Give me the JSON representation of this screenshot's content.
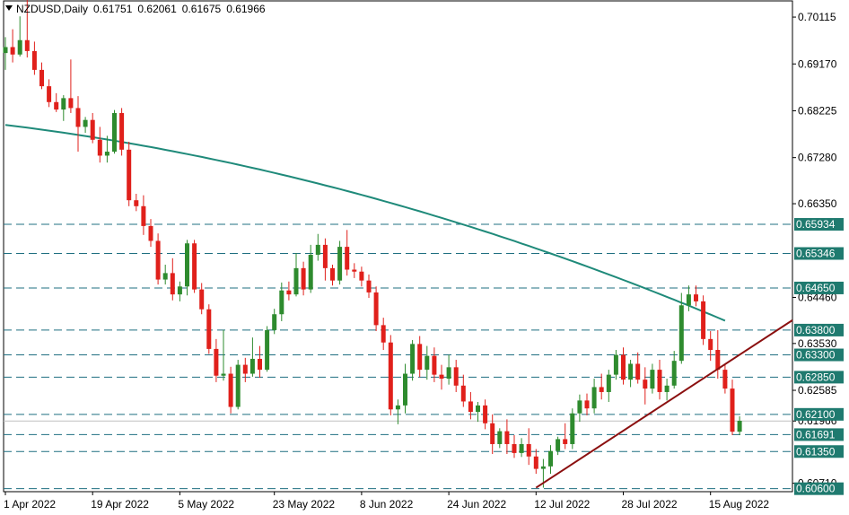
{
  "header": {
    "symbol": "NZDUSD,Daily",
    "open": "0.61751",
    "high": "0.62061",
    "low": "0.61675",
    "close": "0.61966"
  },
  "colors": {
    "bull": "#2e8b2e",
    "bear": "#e0201b",
    "ma": "#1f8a7a",
    "trendline": "#8b1010",
    "level_line": "#1f6f80",
    "label_bg": "#1f7a6f",
    "price_line": "#c0c0c0"
  },
  "chart_data": {
    "type": "candlestick",
    "symbol": "NZDUSD",
    "timeframe": "Daily",
    "ylim": [
      0.6054,
      0.7046
    ],
    "y_ticks": [
      "0.70115",
      "0.69170",
      "0.68225",
      "0.67280",
      "0.66350",
      "0.64460",
      "0.63530",
      "0.62585",
      "0.61966",
      "0.60710"
    ],
    "x_ticks": [
      "1 Apr 2022",
      "19 Apr 2022",
      "5 May 2022",
      "23 May 2022",
      "8 Jun 2022",
      "24 Jun 2022",
      "12 Jul 2022",
      "28 Jul 2022",
      "15 Aug 2022"
    ],
    "x_tick_index": [
      0,
      12,
      24,
      37,
      49,
      61,
      73,
      85,
      97
    ],
    "levels": [
      "0.65934",
      "0.65346",
      "0.64650",
      "0.63800",
      "0.63300",
      "0.62850",
      "0.62100",
      "0.61691",
      "0.61350",
      "0.60600"
    ],
    "current_price": "0.61966",
    "candles": [
      [
        0.6939,
        0.6971,
        0.6905,
        0.6951
      ],
      [
        0.6951,
        0.6987,
        0.692,
        0.6936
      ],
      [
        0.6936,
        0.7013,
        0.6932,
        0.6965
      ],
      [
        0.6965,
        0.7048,
        0.693,
        0.6943
      ],
      [
        0.6943,
        0.6962,
        0.6895,
        0.6905
      ],
      [
        0.6905,
        0.692,
        0.6866,
        0.6872
      ],
      [
        0.6872,
        0.6886,
        0.683,
        0.684
      ],
      [
        0.684,
        0.6858,
        0.682,
        0.6825
      ],
      [
        0.6825,
        0.6854,
        0.6802,
        0.6848
      ],
      [
        0.6848,
        0.6926,
        0.6818,
        0.6828
      ],
      [
        0.6828,
        0.6852,
        0.674,
        0.679
      ],
      [
        0.679,
        0.681,
        0.6778,
        0.6804
      ],
      [
        0.6804,
        0.6818,
        0.6757,
        0.6764
      ],
      [
        0.6764,
        0.679,
        0.6718,
        0.6732
      ],
      [
        0.6732,
        0.6772,
        0.6718,
        0.674
      ],
      [
        0.674,
        0.6824,
        0.6736,
        0.6818
      ],
      [
        0.6818,
        0.6828,
        0.6732,
        0.6744
      ],
      [
        0.6744,
        0.676,
        0.663,
        0.6642
      ],
      [
        0.6642,
        0.6655,
        0.662,
        0.663
      ],
      [
        0.663,
        0.6652,
        0.6572,
        0.659
      ],
      [
        0.659,
        0.6604,
        0.6548,
        0.656
      ],
      [
        0.656,
        0.6575,
        0.6472,
        0.6482
      ],
      [
        0.6482,
        0.6512,
        0.6472,
        0.6495
      ],
      [
        0.6495,
        0.6525,
        0.644,
        0.6452
      ],
      [
        0.6452,
        0.6478,
        0.6438,
        0.6468
      ],
      [
        0.6468,
        0.6562,
        0.645,
        0.6555
      ],
      [
        0.6555,
        0.6562,
        0.6455,
        0.6462
      ],
      [
        0.6462,
        0.6475,
        0.6412,
        0.6422
      ],
      [
        0.6422,
        0.6432,
        0.6332,
        0.6342
      ],
      [
        0.6342,
        0.6362,
        0.6275,
        0.6288
      ],
      [
        0.6288,
        0.638,
        0.6278,
        0.6292
      ],
      [
        0.6292,
        0.6306,
        0.6212,
        0.6225
      ],
      [
        0.6225,
        0.632,
        0.622,
        0.631
      ],
      [
        0.631,
        0.6324,
        0.6275,
        0.6292
      ],
      [
        0.6292,
        0.6365,
        0.6286,
        0.6322
      ],
      [
        0.6322,
        0.6348,
        0.6284,
        0.63
      ],
      [
        0.63,
        0.6388,
        0.6296,
        0.638
      ],
      [
        0.638,
        0.6423,
        0.6372,
        0.6412
      ],
      [
        0.6412,
        0.6476,
        0.6398,
        0.646
      ],
      [
        0.646,
        0.6478,
        0.644,
        0.6452
      ],
      [
        0.6452,
        0.6535,
        0.6448,
        0.6505
      ],
      [
        0.6505,
        0.6518,
        0.645,
        0.6462
      ],
      [
        0.6462,
        0.6552,
        0.6455,
        0.6532
      ],
      [
        0.6532,
        0.6574,
        0.652,
        0.6552
      ],
      [
        0.6552,
        0.6565,
        0.648,
        0.6505
      ],
      [
        0.6505,
        0.6512,
        0.647,
        0.648
      ],
      [
        0.648,
        0.656,
        0.6472,
        0.6548
      ],
      [
        0.6548,
        0.6582,
        0.649,
        0.6502
      ],
      [
        0.6502,
        0.6515,
        0.6485,
        0.6498
      ],
      [
        0.6498,
        0.6508,
        0.6468,
        0.648
      ],
      [
        0.648,
        0.6492,
        0.6445,
        0.6456
      ],
      [
        0.6456,
        0.6468,
        0.6378,
        0.639
      ],
      [
        0.639,
        0.6405,
        0.634,
        0.6355
      ],
      [
        0.6355,
        0.637,
        0.6208,
        0.622
      ],
      [
        0.622,
        0.624,
        0.619,
        0.6228
      ],
      [
        0.6228,
        0.6312,
        0.6212,
        0.6292
      ],
      [
        0.6292,
        0.636,
        0.6278,
        0.6352
      ],
      [
        0.6352,
        0.6368,
        0.6285,
        0.63
      ],
      [
        0.63,
        0.6348,
        0.628,
        0.6328
      ],
      [
        0.6328,
        0.6345,
        0.6275,
        0.629
      ],
      [
        0.629,
        0.631,
        0.626,
        0.6282
      ],
      [
        0.6282,
        0.633,
        0.627,
        0.6305
      ],
      [
        0.6305,
        0.632,
        0.6255,
        0.6268
      ],
      [
        0.6268,
        0.629,
        0.6225,
        0.6236
      ],
      [
        0.6236,
        0.6255,
        0.62,
        0.6215
      ],
      [
        0.6215,
        0.6235,
        0.6195,
        0.6228
      ],
      [
        0.6228,
        0.624,
        0.618,
        0.6192
      ],
      [
        0.6192,
        0.621,
        0.613,
        0.615
      ],
      [
        0.615,
        0.6182,
        0.6142,
        0.6176
      ],
      [
        0.6176,
        0.62,
        0.613,
        0.615
      ],
      [
        0.615,
        0.6168,
        0.6122,
        0.6132
      ],
      [
        0.6132,
        0.6162,
        0.6124,
        0.615
      ],
      [
        0.615,
        0.6182,
        0.6108,
        0.6125
      ],
      [
        0.6125,
        0.614,
        0.609,
        0.61
      ],
      [
        0.61,
        0.612,
        0.6062,
        0.6105
      ],
      [
        0.6105,
        0.6148,
        0.609,
        0.6136
      ],
      [
        0.6136,
        0.6165,
        0.6128,
        0.616
      ],
      [
        0.616,
        0.6192,
        0.614,
        0.615
      ],
      [
        0.615,
        0.6222,
        0.614,
        0.6212
      ],
      [
        0.6212,
        0.625,
        0.6195,
        0.6238
      ],
      [
        0.6238,
        0.6252,
        0.6208,
        0.6222
      ],
      [
        0.6222,
        0.6282,
        0.6212,
        0.6265
      ],
      [
        0.6265,
        0.6292,
        0.624,
        0.6255
      ],
      [
        0.6255,
        0.63,
        0.6235,
        0.629
      ],
      [
        0.629,
        0.634,
        0.628,
        0.633
      ],
      [
        0.633,
        0.6345,
        0.627,
        0.628
      ],
      [
        0.628,
        0.632,
        0.6265,
        0.6312
      ],
      [
        0.6312,
        0.6335,
        0.6272,
        0.628
      ],
      [
        0.628,
        0.6305,
        0.623,
        0.6262
      ],
      [
        0.6262,
        0.6312,
        0.6252,
        0.63
      ],
      [
        0.63,
        0.632,
        0.624,
        0.6255
      ],
      [
        0.6255,
        0.6282,
        0.6238,
        0.6268
      ],
      [
        0.6268,
        0.6338,
        0.6262,
        0.6318
      ],
      [
        0.6318,
        0.6455,
        0.6312,
        0.643
      ],
      [
        0.643,
        0.647,
        0.6418,
        0.6452
      ],
      [
        0.6452,
        0.647,
        0.6428,
        0.6438
      ],
      [
        0.6438,
        0.645,
        0.635,
        0.6362
      ],
      [
        0.6362,
        0.6378,
        0.6318,
        0.634
      ],
      [
        0.634,
        0.638,
        0.6282,
        0.63
      ],
      [
        0.63,
        0.6312,
        0.6252,
        0.6262
      ],
      [
        0.6262,
        0.628,
        0.6168,
        0.6175
      ],
      [
        0.6175,
        0.6206,
        0.6168,
        0.6197
      ]
    ],
    "ma_window": 200
  }
}
